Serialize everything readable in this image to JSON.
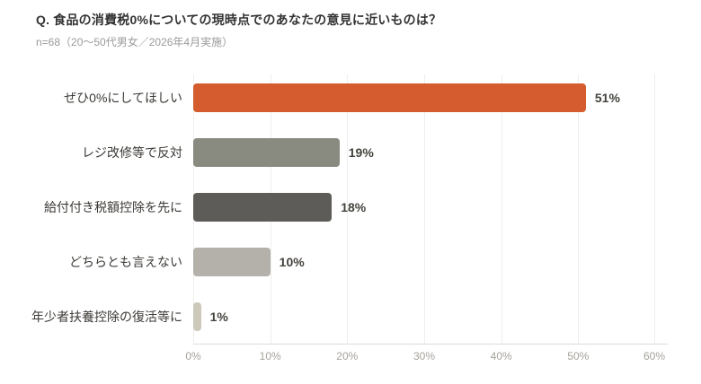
{
  "header": {
    "title": "Q. 食品の消費税0%についての現時点でのあなたの意見に近いものは？",
    "subtitle": "n=68（20〜50代男女／2026年4月実施）"
  },
  "chart_data": {
    "type": "bar",
    "orientation": "horizontal",
    "title": "Q. 食品の消費税0%についての現時点でのあなたの意見に近いものは？",
    "subtitle": "n=68（20〜50代男女／2026年4月実施）",
    "categories": [
      "ぜひ0%にしてほしい",
      "レジ改修等で反対",
      "給付付き税額控除を先に",
      "どちらとも言えない",
      "年少者扶養控除の復活等に"
    ],
    "values": [
      51,
      19,
      18,
      10,
      1
    ],
    "value_labels": [
      "51%",
      "19%",
      "18%",
      "10%",
      "1%"
    ],
    "bar_colors": [
      "#d45c2f",
      "#898b81",
      "#5e5c58",
      "#b3b1a9",
      "#cdc9ba"
    ],
    "xlabel": "",
    "ylabel": "",
    "xlim": [
      0,
      60
    ],
    "x_ticks": [
      "0%",
      "10%",
      "20%",
      "30%",
      "40%",
      "50%",
      "60%"
    ],
    "grid": true,
    "legend": false,
    "colors": {
      "background": "#ffffff",
      "gridline": "#eeeeec",
      "axis_line": "#dcdcda",
      "title_text": "#333333",
      "subtitle_text": "#9a9a9a",
      "category_text": "#3c3a36",
      "value_text": "#45433e",
      "tick_text": "#a5a29c"
    }
  }
}
